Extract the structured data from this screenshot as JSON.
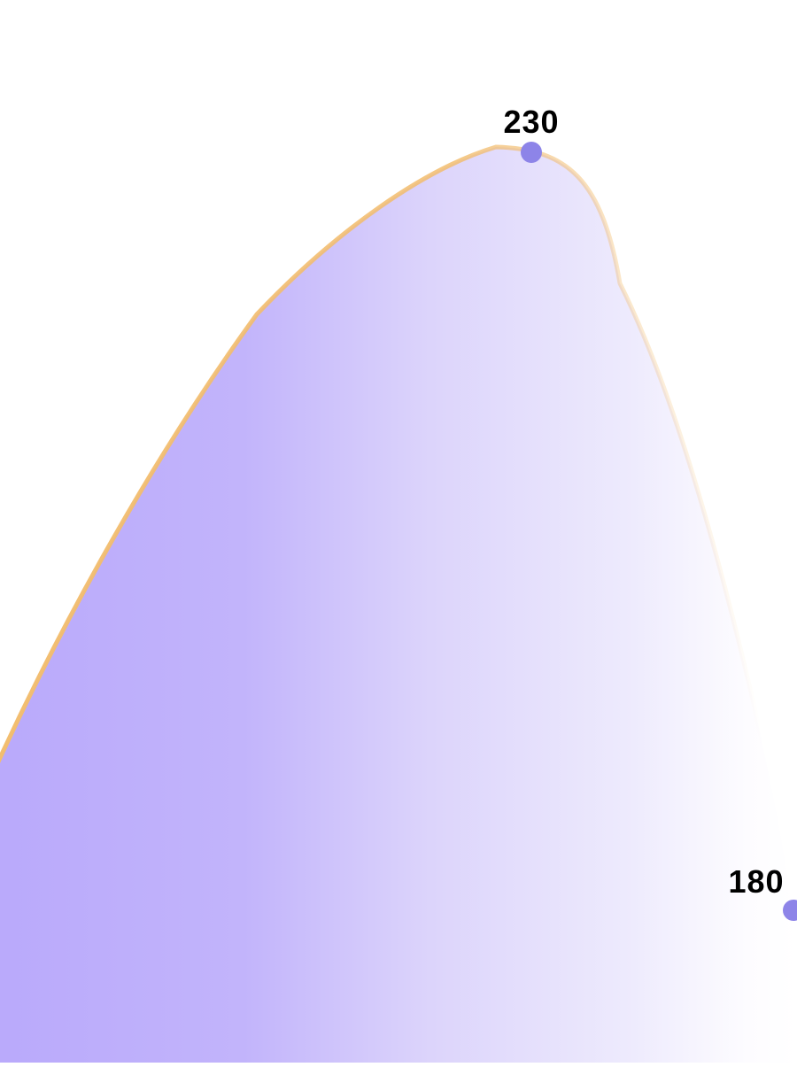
{
  "chart_data": {
    "type": "area",
    "title": "",
    "xlabel": "",
    "ylabel": "",
    "grid": false,
    "legend": "none",
    "series": [
      {
        "points": [
          {
            "value": 230,
            "label": "230"
          },
          {
            "value": 180,
            "label": "180"
          }
        ]
      }
    ],
    "colors": {
      "fill_start": "#b9a9fb",
      "fill_end": "#fdfcff",
      "line": "#f2bd6f",
      "marker": "#8d84e8",
      "label": "#000000"
    }
  }
}
